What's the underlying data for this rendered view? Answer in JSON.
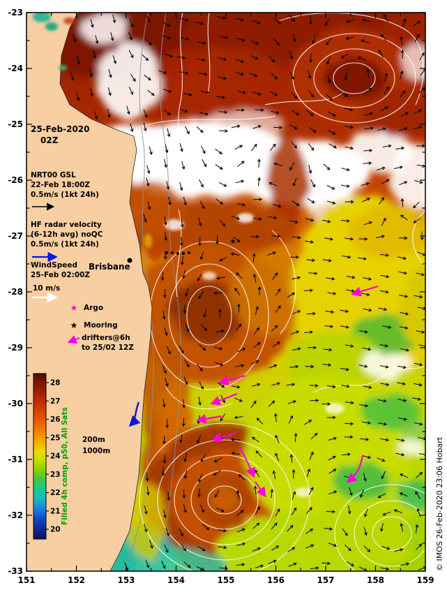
{
  "header": {
    "date": "25-Feb-2020",
    "time": "02Z"
  },
  "legend": {
    "gsl": {
      "line1": "NRT00 GSL",
      "line2": "22-Feb 18:00Z",
      "line3": "0.5m/s (1kt 24h)"
    },
    "hf_radar": {
      "line1": "HF radar velocity",
      "line2": "(6-12h avg) noQC",
      "line3": "0.5m/s (1kt 24h)"
    },
    "wind": {
      "line1": "WindSpeed",
      "line2": "25-Feb 02:00Z",
      "line3": "10 m/s"
    },
    "argo_label": "Argo",
    "mooring_label": "Mooring",
    "drifters": {
      "line1": "drifters@6h",
      "line2": "to 25/02 12Z"
    }
  },
  "map": {
    "city_label": "Brisbane",
    "depth_200": "200m",
    "depth_1000": "1000m"
  },
  "colorbar": {
    "label": "Filled 4h comp, p50, All Sats",
    "ticks": [
      "28",
      "27",
      "26",
      "25",
      "24",
      "23",
      "22",
      "21",
      "20"
    ]
  },
  "axes": {
    "x_ticks": [
      "151",
      "152",
      "153",
      "154",
      "155",
      "156",
      "157",
      "158",
      "159"
    ],
    "y_ticks": [
      "-23",
      "-24",
      "-25",
      "-26",
      "-27",
      "-28",
      "-29",
      "-30",
      "-31",
      "-32",
      "-33"
    ]
  },
  "credit": "© IMOS 26-Feb-2020 23:06 Hobart",
  "icons": {
    "argo_star": "★",
    "mooring_star": "★"
  },
  "colors": {
    "land": "#F8CFA2",
    "drifter_magenta": "#FF00E0",
    "hf_blue": "#0018E0",
    "ssh_contour": "#FFFFFF",
    "bathy_gray": "#909090",
    "colorbar_label_green": "#00A000"
  }
}
